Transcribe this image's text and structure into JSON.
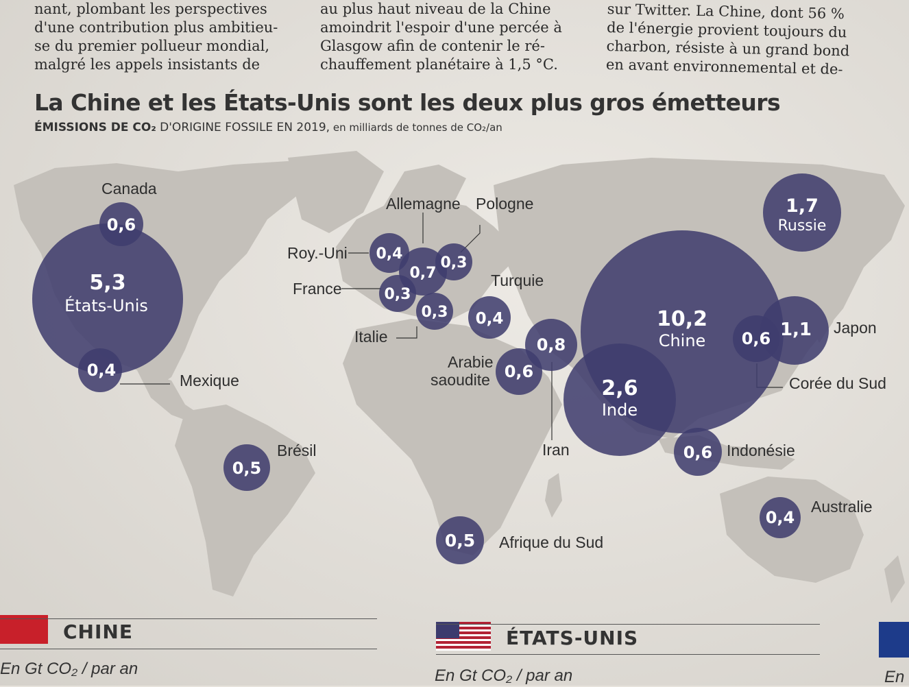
{
  "article": {
    "col1": [
      "nant, plombant les perspectives",
      "d'une contribution plus ambitieu-",
      "se du premier pollueur mondial,",
      "malgré les appels insistants de"
    ],
    "col2": [
      "au plus haut niveau de la Chine",
      "amoindrit l'espoir d'une percée à",
      "Glasgow afin de contenir le ré-",
      "chauffement planétaire à 1,5 °C."
    ],
    "col3": [
      "sur Twitter. La Chine, dont 56 %",
      "de l'énergie provient toujours du",
      "charbon, résiste à un grand bond",
      "en avant environnemental et de-"
    ]
  },
  "headline": "La Chine et les États-Unis sont les deux plus gros émetteurs",
  "subtitle": {
    "bold": "ÉMISSIONS DE CO₂",
    "main": " D'ORIGINE FOSSILE EN 2019,",
    "rest": " en milliards de tonnes de CO₂/an"
  },
  "map_data": {
    "unit": "milliards de tonnes de CO₂/an",
    "countries": [
      {
        "name": "États-Unis",
        "value": "5,3"
      },
      {
        "name": "Canada",
        "value": "0,6"
      },
      {
        "name": "Mexique",
        "value": "0,4"
      },
      {
        "name": "Brésil",
        "value": "0,5"
      },
      {
        "name": "Roy.-Uni",
        "value": "0,4"
      },
      {
        "name": "Allemagne",
        "value": "0,7"
      },
      {
        "name": "Pologne",
        "value": "0,3"
      },
      {
        "name": "France",
        "value": "0,3"
      },
      {
        "name": "Italie",
        "value": "0,3"
      },
      {
        "name": "Turquie",
        "value": "0,4"
      },
      {
        "name": "Iran",
        "value": "0,8"
      },
      {
        "name": "Arabie saoudite",
        "value": "0,6"
      },
      {
        "name": "Afrique du Sud",
        "value": "0,5"
      },
      {
        "name": "Chine",
        "value": "10,2"
      },
      {
        "name": "Inde",
        "value": "2,6"
      },
      {
        "name": "Russie",
        "value": "1,7"
      },
      {
        "name": "Japon",
        "value": "1,1"
      },
      {
        "name": "Corée du Sud",
        "value": "0,6"
      },
      {
        "name": "Indonésie",
        "value": "0,6"
      },
      {
        "name": "Australie",
        "value": "0,4"
      }
    ]
  },
  "labels": {
    "canada": "Canada",
    "mexique": "Mexique",
    "bresil": "Brésil",
    "royuni": "Roy.-Uni",
    "allemagne": "Allemagne",
    "pologne": "Pologne",
    "france": "France",
    "italie": "Italie",
    "turquie": "Turquie",
    "arabie1": "Arabie",
    "arabie2": "saoudite",
    "iran": "Iran",
    "afriquedusud": "Afrique du Sud",
    "japon": "Japon",
    "coree": "Corée du Sud",
    "indonesie": "Indonésie",
    "australie": "Australie"
  },
  "panels": {
    "china_title": "CHINE",
    "us_title": "ÉTATS-UNIS",
    "china_unit": "En Gt CO₂ / par an",
    "us_unit": "En Gt CO₂ / par an",
    "eu_unit": "En"
  },
  "colors": {
    "bubble": "#3f3d6e",
    "land": "#c4c0ba",
    "paper": "#e7e3dc"
  }
}
